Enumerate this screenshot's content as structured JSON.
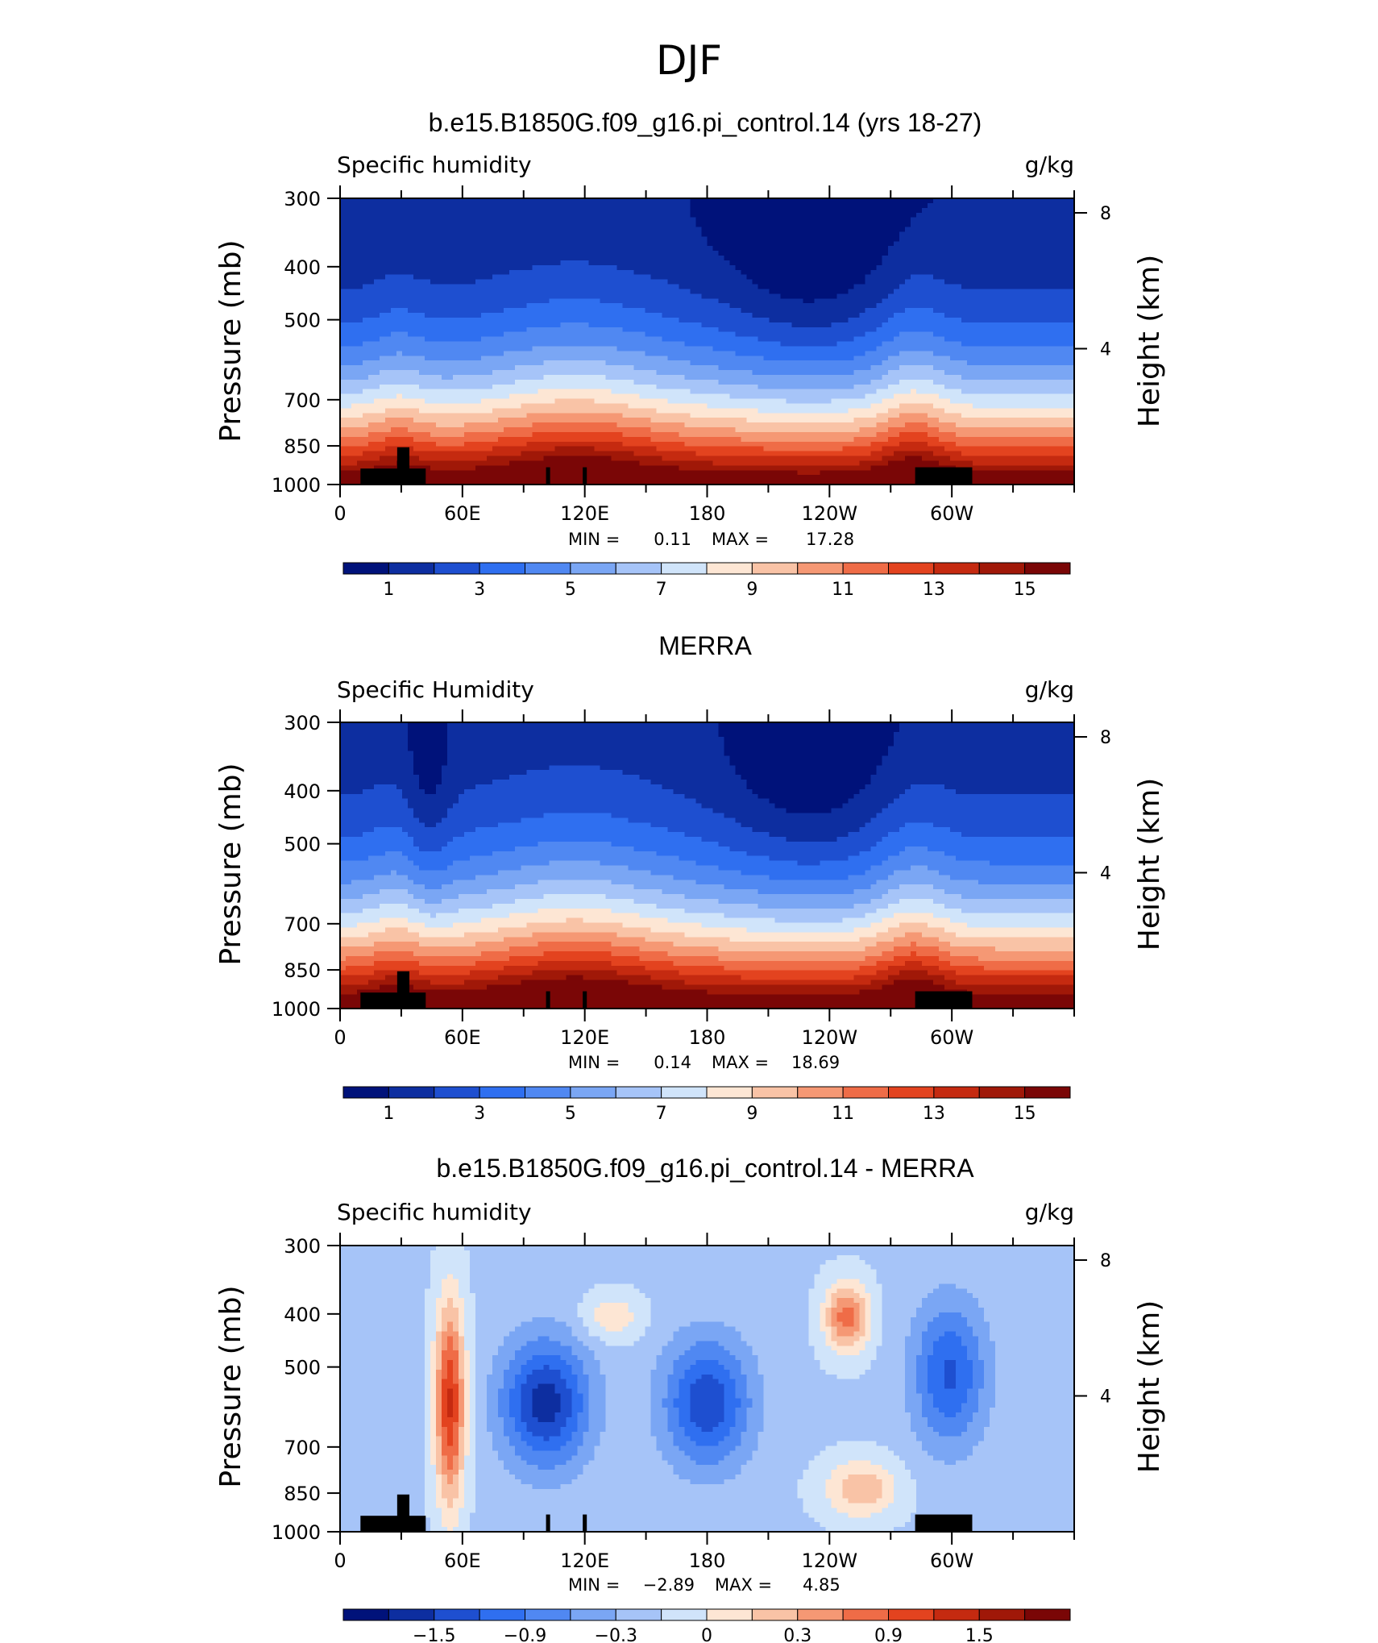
{
  "figure_title": "DJF",
  "colors": {
    "absolute": [
      "#00127a",
      "#0d2ea0",
      "#1e4fd0",
      "#2f6ff0",
      "#5088f2",
      "#7aa6f4",
      "#a6c4f8",
      "#d0e4fa",
      "#fde6d4",
      "#f9c3a6",
      "#f59874",
      "#ef6c47",
      "#e3431f",
      "#c52a10",
      "#a01808",
      "#7a0606"
    ],
    "difference": [
      "#00127a",
      "#0d2ea0",
      "#1e4fd0",
      "#2f6ff0",
      "#5088f2",
      "#7aa6f4",
      "#a6c4f8",
      "#d0e4fa",
      "#fde6d4",
      "#f9c3a6",
      "#f59874",
      "#ef6c47",
      "#e3431f",
      "#c52a10",
      "#a01808",
      "#7a0606"
    ],
    "topography": "#000000"
  },
  "chart_data": [
    {
      "type": "heatmap",
      "title": "b.e15.B1850G.f09_g16.pi_control.14 (yrs 18-27)",
      "left_label": "Specific humidity",
      "right_label": "g/kg",
      "ylabel": "Pressure (mb)",
      "ylabel_right": "Height (km)",
      "y_ticks": [
        "300",
        "400",
        "500",
        "700",
        "850",
        "1000"
      ],
      "y_tick_values": [
        300,
        400,
        500,
        700,
        850,
        1000
      ],
      "y_right_ticks": [
        "8",
        "4"
      ],
      "x_ticks": [
        "0",
        "60E",
        "120E",
        "180",
        "120W",
        "60W"
      ],
      "x_tick_values": [
        0,
        60,
        120,
        180,
        240,
        300
      ],
      "xlim": [
        0,
        360
      ],
      "ylim": [
        1000,
        300
      ],
      "min_label": "MIN =",
      "min_value": "0.11",
      "max_label": "MAX =",
      "max_value": "17.28",
      "colorbar_labels": [
        "1",
        "3",
        "5",
        "7",
        "9",
        "11",
        "13",
        "15"
      ],
      "field": "absolute",
      "field_offset": 0.0
    },
    {
      "type": "heatmap",
      "title": "MERRA",
      "left_label": "Specific Humidity",
      "right_label": "g/kg",
      "ylabel": "Pressure (mb)",
      "ylabel_right": "Height (km)",
      "y_ticks": [
        "300",
        "400",
        "500",
        "700",
        "850",
        "1000"
      ],
      "y_tick_values": [
        300,
        400,
        500,
        700,
        850,
        1000
      ],
      "y_right_ticks": [
        "8",
        "4"
      ],
      "x_ticks": [
        "0",
        "60E",
        "120E",
        "180",
        "120W",
        "60W"
      ],
      "x_tick_values": [
        0,
        60,
        120,
        180,
        240,
        300
      ],
      "xlim": [
        0,
        360
      ],
      "ylim": [
        1000,
        300
      ],
      "min_label": "MIN =",
      "min_value": "0.14",
      "max_label": "MAX =",
      "max_value": "18.69",
      "colorbar_labels": [
        "1",
        "3",
        "5",
        "7",
        "9",
        "11",
        "13",
        "15"
      ],
      "field": "absolute",
      "field_offset": 1.0
    },
    {
      "type": "heatmap",
      "title": "b.e15.B1850G.f09_g16.pi_control.14 - MERRA",
      "left_label": "Specific humidity",
      "right_label": "g/kg",
      "ylabel": "Pressure (mb)",
      "ylabel_right": "Height (km)",
      "y_ticks": [
        "300",
        "400",
        "500",
        "700",
        "850",
        "1000"
      ],
      "y_tick_values": [
        300,
        400,
        500,
        700,
        850,
        1000
      ],
      "y_right_ticks": [
        "8",
        "4"
      ],
      "x_ticks": [
        "0",
        "60E",
        "120E",
        "180",
        "120W",
        "60W"
      ],
      "x_tick_values": [
        0,
        60,
        120,
        180,
        240,
        300
      ],
      "xlim": [
        0,
        360
      ],
      "ylim": [
        1000,
        300
      ],
      "min_label": "MIN =",
      "min_value": "−2.89",
      "max_label": "MAX =",
      "max_value": "4.85",
      "colorbar_labels": [
        "−1.5",
        "−0.9",
        "−0.3",
        "0",
        "0.3",
        "0.9",
        "1.5"
      ],
      "field": "difference",
      "field_offset": 0.0
    }
  ]
}
